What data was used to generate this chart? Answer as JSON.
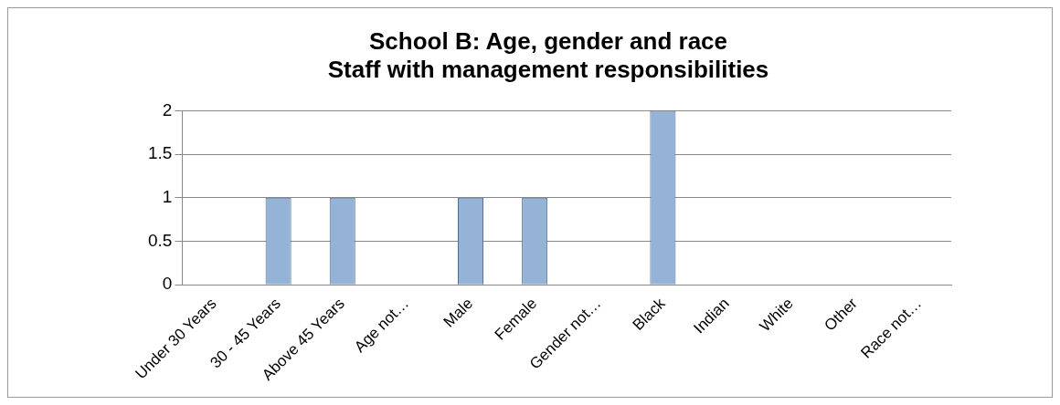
{
  "chart_data": {
    "type": "bar",
    "title": "School B: Age, gender and race\nStaff with management responsibilities",
    "categories": [
      "Under 30 Years",
      "30 - 45 Years",
      "Above 45 Years",
      "Age not…",
      "Male",
      "Female",
      "Gender not…",
      "Black",
      "Indian",
      "White",
      "Other",
      "Race not…"
    ],
    "values": [
      0,
      1,
      1,
      0,
      1,
      1,
      0,
      2,
      0,
      0,
      0,
      0
    ],
    "color": "#95b3d7",
    "ylim": [
      0,
      2
    ],
    "yticks": [
      0,
      0.5,
      1,
      1.5,
      2
    ],
    "grid": "y"
  }
}
